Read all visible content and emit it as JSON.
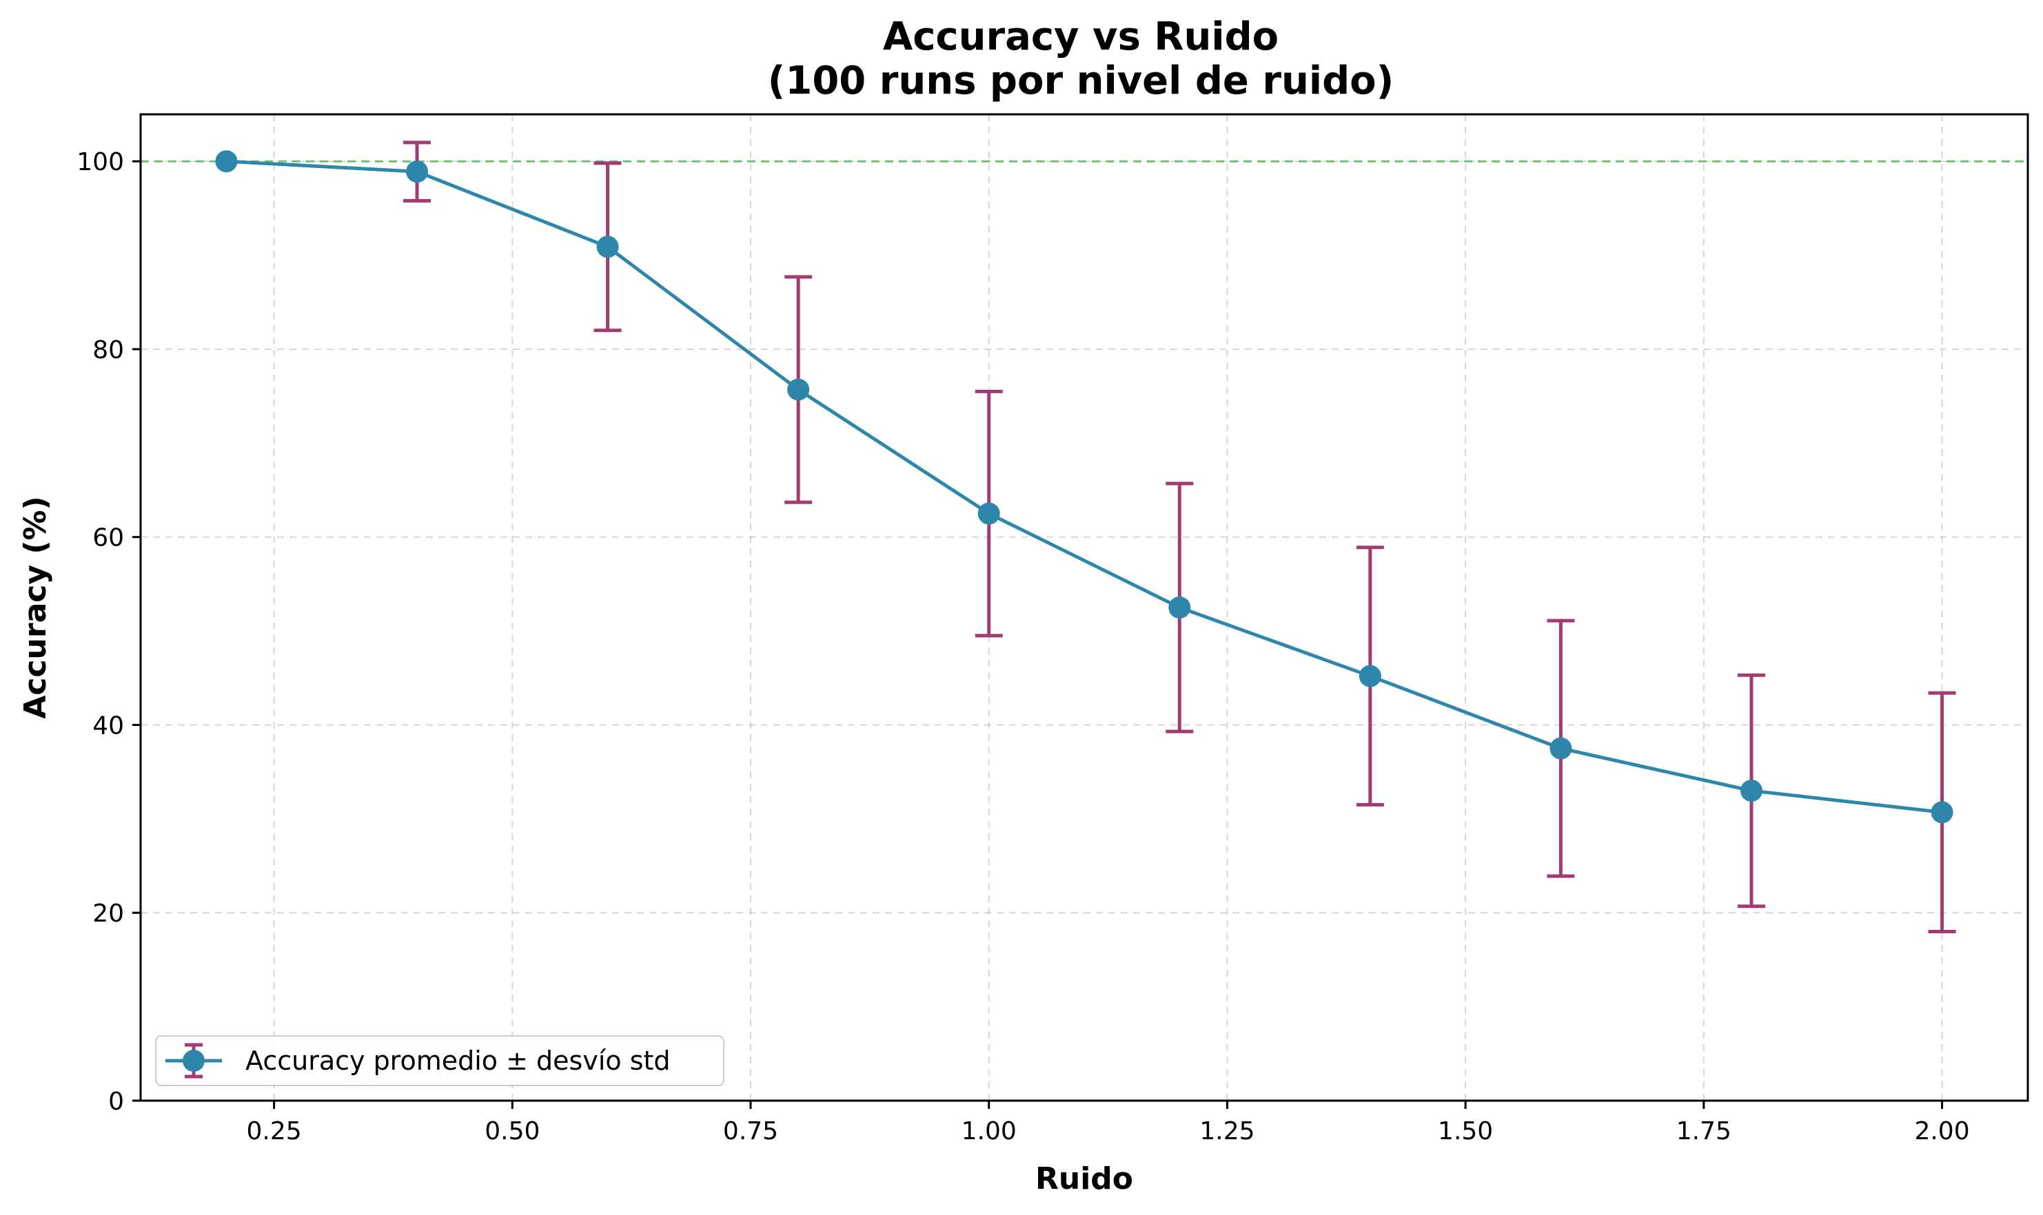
{
  "chart_data": {
    "type": "line",
    "title": "Accuracy vs Ruido",
    "subtitle": "(100 runs por nivel de ruido)",
    "xlabel": "Ruido",
    "ylabel": "Accuracy (%)",
    "xlim": [
      0.11,
      2.09
    ],
    "ylim": [
      0,
      105
    ],
    "x_ticks": [
      0.25,
      0.5,
      0.75,
      1.0,
      1.25,
      1.5,
      1.75,
      2.0
    ],
    "x_tick_labels": [
      "0.25",
      "0.50",
      "0.75",
      "1.00",
      "1.25",
      "1.50",
      "1.75",
      "2.00"
    ],
    "y_ticks": [
      0,
      20,
      40,
      60,
      80,
      100
    ],
    "y_tick_labels": [
      "0",
      "20",
      "40",
      "60",
      "80",
      "100"
    ],
    "grid": true,
    "legend_position": "lower-left",
    "reference_line": {
      "y": 100,
      "style": "dashed",
      "color": "#5cb85c"
    },
    "series": [
      {
        "name": "Accuracy promedio ± desvío std",
        "x": [
          0.2,
          0.4,
          0.6,
          0.8,
          1.0,
          1.2,
          1.4,
          1.6,
          1.8,
          2.0
        ],
        "y": [
          100.0,
          98.9,
          90.9,
          75.7,
          62.5,
          52.5,
          45.2,
          37.5,
          33.0,
          30.7
        ],
        "yerr": [
          0.0,
          3.1,
          8.9,
          12.0,
          13.0,
          13.2,
          13.7,
          13.6,
          12.3,
          12.7
        ],
        "color": "#2e86ab",
        "error_color": "#a23b72"
      }
    ]
  }
}
